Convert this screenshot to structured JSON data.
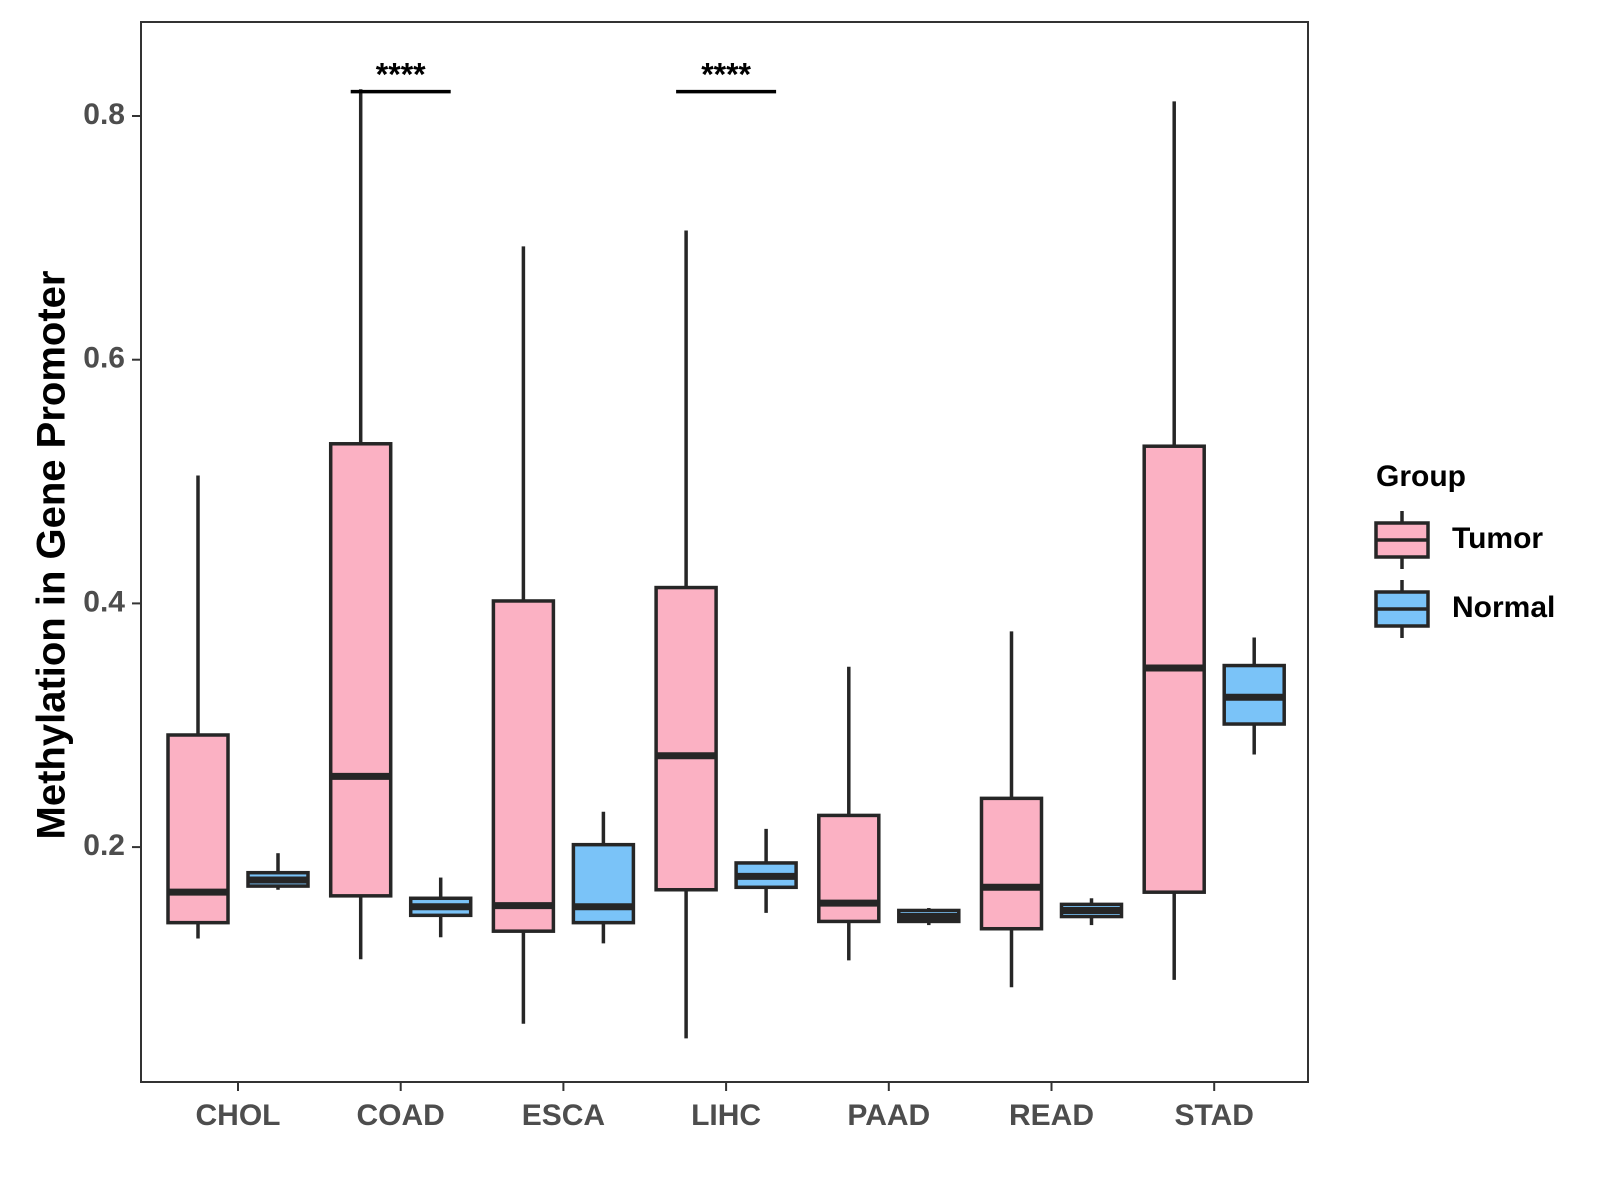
{
  "chart_data": {
    "type": "boxplot",
    "title": "",
    "xlabel": "",
    "ylabel": "Methylation in Gene Promoter",
    "ylim": [
      0.0,
      0.87
    ],
    "yticks": [
      0.2,
      0.4,
      0.6,
      0.8
    ],
    "ytick_labels": [
      "0.2",
      "0.4",
      "0.6",
      "0.8"
    ],
    "categories": [
      "CHOL",
      "COAD",
      "ESCA",
      "LIHC",
      "PAAD",
      "READ",
      "STAD"
    ],
    "legend": {
      "title": "Group",
      "position": "right",
      "entries": [
        {
          "name": "Tumor",
          "color": "#FBB1C3"
        },
        {
          "name": "Normal",
          "color": "#7AC3F8"
        }
      ]
    },
    "series": [
      {
        "name": "Tumor",
        "color": "#FBB1C3",
        "boxes": [
          {
            "category": "CHOL",
            "min": 0.125,
            "q1": 0.138,
            "median": 0.163,
            "q3": 0.292,
            "max": 0.505
          },
          {
            "category": "COAD",
            "min": 0.108,
            "q1": 0.16,
            "median": 0.258,
            "q3": 0.531,
            "max": 0.822
          },
          {
            "category": "ESCA",
            "min": 0.055,
            "q1": 0.131,
            "median": 0.152,
            "q3": 0.402,
            "max": 0.693
          },
          {
            "category": "LIHC",
            "min": 0.043,
            "q1": 0.165,
            "median": 0.275,
            "q3": 0.413,
            "max": 0.706
          },
          {
            "category": "PAAD",
            "min": 0.107,
            "q1": 0.139,
            "median": 0.154,
            "q3": 0.226,
            "max": 0.348
          },
          {
            "category": "READ",
            "min": 0.085,
            "q1": 0.133,
            "median": 0.167,
            "q3": 0.24,
            "max": 0.377
          },
          {
            "category": "STAD",
            "min": 0.091,
            "q1": 0.163,
            "median": 0.347,
            "q3": 0.529,
            "max": 0.812
          }
        ]
      },
      {
        "name": "Normal",
        "color": "#7AC3F8",
        "boxes": [
          {
            "category": "CHOL",
            "min": 0.165,
            "q1": 0.168,
            "median": 0.173,
            "q3": 0.179,
            "max": 0.195
          },
          {
            "category": "COAD",
            "min": 0.126,
            "q1": 0.144,
            "median": 0.151,
            "q3": 0.158,
            "max": 0.175
          },
          {
            "category": "ESCA",
            "min": 0.121,
            "q1": 0.138,
            "median": 0.151,
            "q3": 0.202,
            "max": 0.229
          },
          {
            "category": "LIHC",
            "min": 0.146,
            "q1": 0.167,
            "median": 0.176,
            "q3": 0.187,
            "max": 0.215
          },
          {
            "category": "PAAD",
            "min": 0.136,
            "q1": 0.139,
            "median": 0.143,
            "q3": 0.148,
            "max": 0.15
          },
          {
            "category": "READ",
            "min": 0.136,
            "q1": 0.143,
            "median": 0.148,
            "q3": 0.153,
            "max": 0.158
          },
          {
            "category": "STAD",
            "min": 0.276,
            "q1": 0.301,
            "median": 0.323,
            "q3": 0.349,
            "max": 0.372
          }
        ]
      }
    ],
    "significance": [
      {
        "category": "COAD",
        "label": "****",
        "y": 0.82
      },
      {
        "category": "LIHC",
        "label": "****",
        "y": 0.82
      }
    ]
  }
}
